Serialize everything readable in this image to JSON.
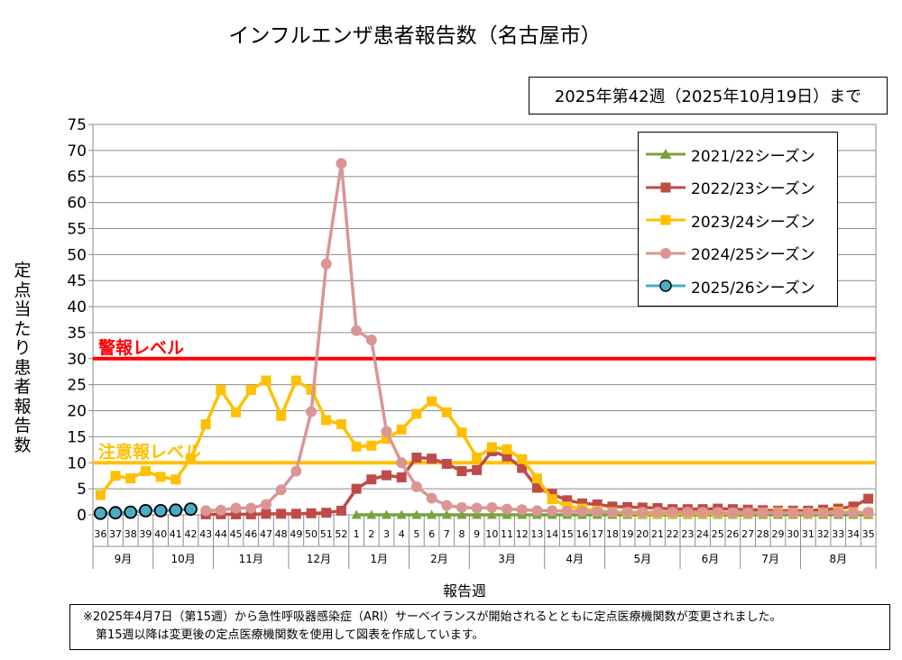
{
  "title": "インフルエンザ患者報告数（名古屋市）",
  "as_of": "2025年第42週（2025年10月19日）まで",
  "note": {
    "line1": "※2025年4月7日（第15週）から急性呼吸器感染症（ARI）サーベイランスが開始されるとともに定点医療機関数が変更されました。",
    "line2": "第15週以降は変更後の定点医療機関数を使用して図表を作成しています。"
  },
  "chart_data": {
    "type": "line",
    "title": "インフルエンザ患者報告数（名古屋市）",
    "xlabel": "報告週",
    "ylabel": "定点当たり患者報告数",
    "ylim": [
      0,
      75
    ],
    "yticks": [
      0,
      5,
      10,
      15,
      20,
      25,
      30,
      35,
      40,
      45,
      50,
      55,
      60,
      65,
      70,
      75
    ],
    "grid": true,
    "legend_position": "top-right",
    "x": [
      "36",
      "37",
      "38",
      "39",
      "40",
      "41",
      "42",
      "43",
      "44",
      "45",
      "46",
      "47",
      "48",
      "49",
      "50",
      "51",
      "52",
      "1",
      "2",
      "3",
      "4",
      "5",
      "6",
      "7",
      "8",
      "9",
      "10",
      "11",
      "12",
      "13",
      "14",
      "15",
      "16",
      "17",
      "18",
      "19",
      "20",
      "21",
      "22",
      "23",
      "24",
      "25",
      "26",
      "27",
      "28",
      "29",
      "30",
      "31",
      "32",
      "33",
      "34",
      "35"
    ],
    "months": [
      {
        "label": "9月",
        "start": 0,
        "end": 4
      },
      {
        "label": "10月",
        "start": 4,
        "end": 8
      },
      {
        "label": "11月",
        "start": 8,
        "end": 13
      },
      {
        "label": "12月",
        "start": 13,
        "end": 17
      },
      {
        "label": "1月",
        "start": 17,
        "end": 21
      },
      {
        "label": "2月",
        "start": 21,
        "end": 25
      },
      {
        "label": "3月",
        "start": 25,
        "end": 30
      },
      {
        "label": "4月",
        "start": 30,
        "end": 34
      },
      {
        "label": "5月",
        "start": 34,
        "end": 39
      },
      {
        "label": "6月",
        "start": 39,
        "end": 43
      },
      {
        "label": "7月",
        "start": 43,
        "end": 47
      },
      {
        "label": "8月",
        "start": 47,
        "end": 52
      }
    ],
    "reference_lines": [
      {
        "label": "警報レベル",
        "value": 30,
        "color": "#ff0000"
      },
      {
        "label": "注意報レベル",
        "value": 10,
        "color": "#ffc000"
      }
    ],
    "series": [
      {
        "name": "2021/22シーズン",
        "color": "#77a33c",
        "marker": "triangle",
        "values": [
          null,
          null,
          null,
          null,
          null,
          null,
          null,
          null,
          null,
          null,
          null,
          null,
          null,
          null,
          null,
          null,
          null,
          0,
          0,
          0,
          0,
          0,
          0,
          0,
          0,
          0,
          0,
          0,
          0,
          0,
          0,
          0,
          0,
          0,
          0,
          0,
          0,
          0,
          0,
          0,
          0,
          0,
          0,
          0,
          0,
          0,
          0,
          0,
          0,
          0,
          0,
          0
        ]
      },
      {
        "name": "2022/23シーズン",
        "color": "#be4b48",
        "marker": "square",
        "values": [
          null,
          null,
          null,
          null,
          null,
          null,
          null,
          0.1,
          0.1,
          0.1,
          0.1,
          0.2,
          0.2,
          0.2,
          0.3,
          0.4,
          0.8,
          5,
          6.8,
          7.6,
          7.2,
          11,
          10.8,
          9.8,
          8.4,
          8.6,
          12.2,
          11.2,
          9,
          5.2,
          4,
          2.8,
          2.2,
          2,
          1.6,
          1.5,
          1.4,
          1.3,
          1.1,
          1.1,
          1.1,
          1.2,
          1.1,
          1,
          0.9,
          0.8,
          0.8,
          0.8,
          1,
          1.2,
          1.6,
          3.1
        ]
      },
      {
        "name": "2023/24シーズン",
        "color": "#ffc000",
        "marker": "square",
        "values": [
          3.8,
          7.5,
          7,
          8.4,
          7.3,
          6.8,
          10.8,
          17.4,
          24,
          19.7,
          24,
          25.8,
          19,
          25.8,
          24,
          18.2,
          17.4,
          13.1,
          13.3,
          14.6,
          16.4,
          19.4,
          21.8,
          19.7,
          15.8,
          11,
          13,
          12.6,
          10.7,
          7,
          3,
          1.6,
          1.2,
          0.8,
          0.5,
          0.4,
          0.3,
          0.3,
          0.3,
          0.3,
          0.3,
          0.3,
          0.3,
          0.3,
          0.4,
          0.5,
          0.4,
          0.3,
          0.4,
          0.6,
          0.5,
          0.4
        ]
      },
      {
        "name": "2024/25シーズン",
        "color": "#d99694",
        "marker": "circle",
        "values": [
          null,
          null,
          null,
          null,
          null,
          null,
          null,
          0.8,
          0.9,
          1.3,
          1.3,
          2,
          4.8,
          8.4,
          19.8,
          48.2,
          67.5,
          35.4,
          33.6,
          16,
          10,
          5.4,
          3.2,
          1.8,
          1.4,
          1.3,
          1.4,
          1.1,
          1,
          0.8,
          0.8,
          0.7,
          0.7,
          0.6,
          0.5,
          0.5,
          0.5,
          0.5,
          0.5,
          0.5,
          0.5,
          0.5,
          0.4,
          0.4,
          0.4,
          0.4,
          0.4,
          0.4,
          0.4,
          0.4,
          0.4,
          0.5
        ]
      },
      {
        "name": "2025/26シーズン",
        "color": "#4bacc6",
        "marker": "circle-outlined",
        "values": [
          0.3,
          0.4,
          0.5,
          0.8,
          0.8,
          0.9,
          1.1,
          null,
          null,
          null,
          null,
          null,
          null,
          null,
          null,
          null,
          null,
          null,
          null,
          null,
          null,
          null,
          null,
          null,
          null,
          null,
          null,
          null,
          null,
          null,
          null,
          null,
          null,
          null,
          null,
          null,
          null,
          null,
          null,
          null,
          null,
          null,
          null,
          null,
          null,
          null,
          null,
          null,
          null,
          null,
          null,
          null
        ]
      }
    ]
  }
}
